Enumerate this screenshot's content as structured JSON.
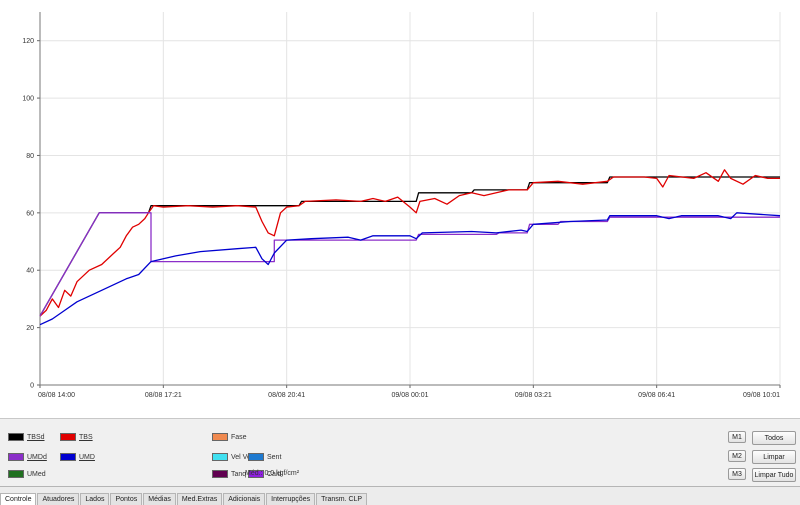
{
  "legend": {
    "items": [
      {
        "key": "tbsd",
        "label": "TBSd",
        "color": "#000000",
        "underline": true
      },
      {
        "key": "tbs",
        "label": "TBS",
        "color": "#e00000",
        "underline": true
      },
      {
        "key": "fase",
        "label": "Fase",
        "color": "#f08a50",
        "underline": false
      },
      {
        "key": "umdd",
        "label": "UMDd",
        "color": "#8b2fc9",
        "underline": true
      },
      {
        "key": "umd",
        "label": "UMD",
        "color": "#0000d0",
        "underline": true
      },
      {
        "key": "vel_vent",
        "label": "Vel Vent",
        "color": "#40e0f0",
        "underline": false
      },
      {
        "key": "sent",
        "label": "Sent",
        "color": "#1e7ad0",
        "underline": false
      },
      {
        "key": "umed",
        "label": "UMed",
        "color": "#207020",
        "underline": false
      },
      {
        "key": "tanq",
        "label": "Tanq",
        "color": "#600050",
        "underline": false
      },
      {
        "key": "cald",
        "label": "Cald",
        "color": "#8f20e0",
        "underline": false
      }
    ],
    "med_label": "Méd.: 0,0 kgf/cm²"
  },
  "buttons": {
    "m1": "M1",
    "m2": "M2",
    "m3": "M3",
    "todos": "Todos",
    "limpar": "Limpar",
    "limpar_tudo": "Limpar Tudo"
  },
  "tabs": [
    "Controle",
    "Atuadores",
    "Lados",
    "Pontos",
    "Médias",
    "Med.Extras",
    "Adicionais",
    "Interrupções",
    "Transm. CLP"
  ],
  "chart_data": {
    "type": "line",
    "x_ticks": [
      "08/08 14:00",
      "08/08 17:21",
      "08/08 20:41",
      "09/08 00:01",
      "09/08 03:21",
      "09/08 06:41",
      "09/08 10:01"
    ],
    "y_ticks": [
      0,
      20,
      40,
      60,
      80,
      100,
      120
    ],
    "ylim": [
      0,
      130
    ],
    "xlim": [
      0,
      6
    ],
    "grid": true,
    "series": [
      {
        "name": "TBSd",
        "color": "#000000",
        "points": [
          [
            0,
            24
          ],
          [
            0.48,
            60
          ],
          [
            0.88,
            60
          ],
          [
            0.9,
            62.5
          ],
          [
            2.1,
            62.5
          ],
          [
            2.12,
            64
          ],
          [
            3.05,
            64
          ],
          [
            3.07,
            67
          ],
          [
            3.5,
            67
          ],
          [
            3.52,
            68
          ],
          [
            3.95,
            68
          ],
          [
            3.97,
            70.5
          ],
          [
            4.6,
            70.5
          ],
          [
            4.62,
            72.5
          ],
          [
            6,
            72.5
          ]
        ]
      },
      {
        "name": "TBS",
        "color": "#e00000",
        "points": [
          [
            0,
            24
          ],
          [
            0.05,
            26
          ],
          [
            0.1,
            30
          ],
          [
            0.15,
            27
          ],
          [
            0.2,
            33
          ],
          [
            0.25,
            31
          ],
          [
            0.3,
            36
          ],
          [
            0.4,
            40
          ],
          [
            0.5,
            42
          ],
          [
            0.6,
            46
          ],
          [
            0.65,
            48
          ],
          [
            0.7,
            52
          ],
          [
            0.75,
            55
          ],
          [
            0.8,
            56
          ],
          [
            0.85,
            58
          ],
          [
            0.88,
            60
          ],
          [
            0.92,
            62.5
          ],
          [
            1.0,
            62
          ],
          [
            1.2,
            62.5
          ],
          [
            1.4,
            62
          ],
          [
            1.6,
            62.5
          ],
          [
            1.75,
            62
          ],
          [
            1.8,
            57
          ],
          [
            1.85,
            53
          ],
          [
            1.9,
            52
          ],
          [
            1.95,
            60
          ],
          [
            2.0,
            62
          ],
          [
            2.1,
            62.5
          ],
          [
            2.15,
            64
          ],
          [
            2.4,
            64.5
          ],
          [
            2.6,
            64
          ],
          [
            2.7,
            65
          ],
          [
            2.8,
            64
          ],
          [
            2.9,
            65.5
          ],
          [
            3.0,
            62
          ],
          [
            3.05,
            60
          ],
          [
            3.08,
            64
          ],
          [
            3.2,
            65
          ],
          [
            3.3,
            63
          ],
          [
            3.4,
            66
          ],
          [
            3.5,
            67
          ],
          [
            3.6,
            66
          ],
          [
            3.7,
            67
          ],
          [
            3.8,
            68
          ],
          [
            3.95,
            68
          ],
          [
            4.0,
            70.5
          ],
          [
            4.2,
            71
          ],
          [
            4.4,
            70
          ],
          [
            4.6,
            71
          ],
          [
            4.65,
            72.5
          ],
          [
            4.9,
            72.5
          ],
          [
            5.0,
            72
          ],
          [
            5.05,
            69
          ],
          [
            5.1,
            73
          ],
          [
            5.3,
            72
          ],
          [
            5.4,
            74
          ],
          [
            5.5,
            71
          ],
          [
            5.55,
            75
          ],
          [
            5.6,
            72
          ],
          [
            5.7,
            70
          ],
          [
            5.8,
            73
          ],
          [
            5.9,
            72
          ],
          [
            6.0,
            72
          ]
        ]
      },
      {
        "name": "UMDd",
        "color": "#8b2fc9",
        "points": [
          [
            0,
            24
          ],
          [
            0.48,
            60
          ],
          [
            0.9,
            60
          ],
          [
            0.9,
            43
          ],
          [
            1.9,
            43
          ],
          [
            1.9,
            50.5
          ],
          [
            3.05,
            50.5
          ],
          [
            3.07,
            52.5
          ],
          [
            3.7,
            52.5
          ],
          [
            3.72,
            53
          ],
          [
            3.95,
            53
          ],
          [
            3.97,
            56
          ],
          [
            4.2,
            56
          ],
          [
            4.22,
            57
          ],
          [
            4.6,
            57
          ],
          [
            4.62,
            58.5
          ],
          [
            6,
            58.5
          ]
        ]
      },
      {
        "name": "UMD",
        "color": "#0000d0",
        "points": [
          [
            0,
            21
          ],
          [
            0.1,
            23
          ],
          [
            0.2,
            26
          ],
          [
            0.3,
            29
          ],
          [
            0.5,
            33
          ],
          [
            0.7,
            37
          ],
          [
            0.8,
            38.5
          ],
          [
            0.9,
            43
          ],
          [
            1.1,
            45
          ],
          [
            1.3,
            46.5
          ],
          [
            1.6,
            47.5
          ],
          [
            1.75,
            48
          ],
          [
            1.8,
            44
          ],
          [
            1.85,
            42
          ],
          [
            1.9,
            46
          ],
          [
            2.0,
            50.5
          ],
          [
            2.2,
            51
          ],
          [
            2.5,
            51.5
          ],
          [
            2.6,
            50.5
          ],
          [
            2.7,
            52
          ],
          [
            3.0,
            52
          ],
          [
            3.05,
            51
          ],
          [
            3.1,
            53
          ],
          [
            3.5,
            53.5
          ],
          [
            3.7,
            53
          ],
          [
            3.9,
            54
          ],
          [
            3.95,
            53.5
          ],
          [
            4.0,
            56
          ],
          [
            4.3,
            57
          ],
          [
            4.6,
            57.5
          ],
          [
            4.62,
            59
          ],
          [
            5.0,
            59
          ],
          [
            5.1,
            58
          ],
          [
            5.2,
            59
          ],
          [
            5.5,
            59
          ],
          [
            5.6,
            58
          ],
          [
            5.65,
            60
          ],
          [
            6.0,
            59
          ]
        ]
      }
    ]
  }
}
